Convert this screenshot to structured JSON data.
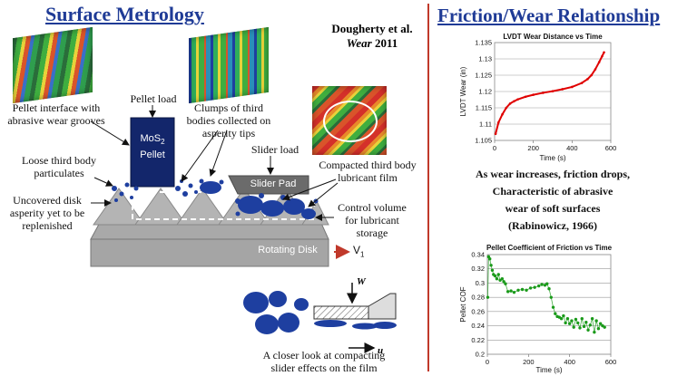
{
  "left": {
    "title": "Surface Metrology",
    "citation_authors": "Dougherty et al.",
    "citation_journal": "Wear",
    "citation_year": "2011",
    "labels": {
      "pellet_interface": "Pellet interface with abrasive wear grooves",
      "pellet_load": "Pellet load",
      "mos2_pellet_line1": "MoS",
      "mos2_subscript": "2",
      "mos2_pellet_line2": "Pellet",
      "clumps": "Clumps of third bodies collected on asperity tips",
      "loose_particulates": "Loose third body particulates",
      "slider_load": "Slider load",
      "slider_pad": "Slider Pad",
      "compacted_film": "Compacted third body lubricant film",
      "uncovered_asperity": "Uncovered disk asperity yet to be replenished",
      "control_volume": "Control volume for lubricant storage",
      "rotating_disk": "Rotating Disk",
      "velocity_symbol": "V",
      "velocity_subscript": "1",
      "closer_look": "A closer look at compacting slider effects on the film",
      "inset_w": "W",
      "inset_u": "u"
    }
  },
  "right": {
    "title": "Friction/Wear Relationship",
    "statement_lines": [
      "As wear increases, friction drops,",
      "Characteristic of abrasive",
      "wear of soft surfaces",
      "(Rabinowicz, 1966)"
    ]
  },
  "colors": {
    "title_blue": "#1f3b96",
    "divider_red": "#c0392b",
    "wear_red": "#e00000",
    "cof_green": "#1a9a1a",
    "particle_blue": "#1e3fa0",
    "pellet_navy": "#13266b"
  },
  "chart_data": [
    {
      "type": "line",
      "title": "LVDT Wear Distance vs Time",
      "xlabel": "Time (s)",
      "ylabel": "LVDT Wear (in)",
      "xlim": [
        0,
        600
      ],
      "ylim": [
        1.105,
        1.135
      ],
      "xticks": [
        0,
        200,
        400,
        600
      ],
      "yticks": [
        1.105,
        1.11,
        1.115,
        1.12,
        1.125,
        1.13,
        1.135
      ],
      "ytick_labels": [
        "1.105",
        "1.11",
        "1.115",
        "1.12",
        "1.125",
        "1.13",
        "1.135"
      ],
      "grid": true,
      "series": [
        {
          "color": "#e00000",
          "x": [
            5,
            20,
            40,
            60,
            80,
            100,
            120,
            160,
            200,
            250,
            300,
            350,
            400,
            450,
            480,
            500,
            520,
            540,
            555,
            565
          ],
          "y": [
            1.107,
            1.1105,
            1.113,
            1.115,
            1.1163,
            1.117,
            1.1176,
            1.1184,
            1.119,
            1.1196,
            1.1201,
            1.1207,
            1.1214,
            1.1226,
            1.1238,
            1.125,
            1.1268,
            1.129,
            1.1308,
            1.132
          ]
        }
      ]
    },
    {
      "type": "scatter",
      "title": "Pellet Coefficient of Friction vs Time",
      "xlabel": "Time (s)",
      "ylabel": "Pellet COF",
      "xlim": [
        0,
        600
      ],
      "ylim": [
        0.2,
        0.34
      ],
      "xticks": [
        0,
        200,
        400,
        600
      ],
      "yticks": [
        0.2,
        0.22,
        0.24,
        0.26,
        0.28,
        0.3,
        0.32,
        0.34
      ],
      "ytick_labels": [
        "0.2",
        "0.22",
        "0.24",
        "0.26",
        "0.28",
        "0.3",
        "0.32",
        "0.34"
      ],
      "grid": true,
      "series": [
        {
          "color": "#1a9a1a",
          "x": [
            2,
            6,
            12,
            18,
            24,
            30,
            38,
            46,
            54,
            62,
            72,
            80,
            88,
            100,
            115,
            130,
            150,
            170,
            190,
            210,
            230,
            250,
            265,
            280,
            290,
            300,
            310,
            320,
            330,
            340,
            350,
            360,
            370,
            380,
            390,
            400,
            410,
            420,
            430,
            440,
            450,
            460,
            470,
            480,
            490,
            500,
            510,
            520,
            530,
            540,
            550,
            560,
            570
          ],
          "y": [
            0.28,
            0.337,
            0.334,
            0.325,
            0.318,
            0.312,
            0.31,
            0.306,
            0.312,
            0.304,
            0.306,
            0.302,
            0.299,
            0.288,
            0.289,
            0.287,
            0.29,
            0.291,
            0.29,
            0.293,
            0.294,
            0.296,
            0.298,
            0.297,
            0.299,
            0.292,
            0.28,
            0.266,
            0.257,
            0.253,
            0.252,
            0.25,
            0.254,
            0.244,
            0.25,
            0.243,
            0.247,
            0.238,
            0.249,
            0.244,
            0.237,
            0.25,
            0.239,
            0.245,
            0.234,
            0.241,
            0.25,
            0.231,
            0.247,
            0.236,
            0.243,
            0.24,
            0.238
          ]
        }
      ]
    }
  ]
}
